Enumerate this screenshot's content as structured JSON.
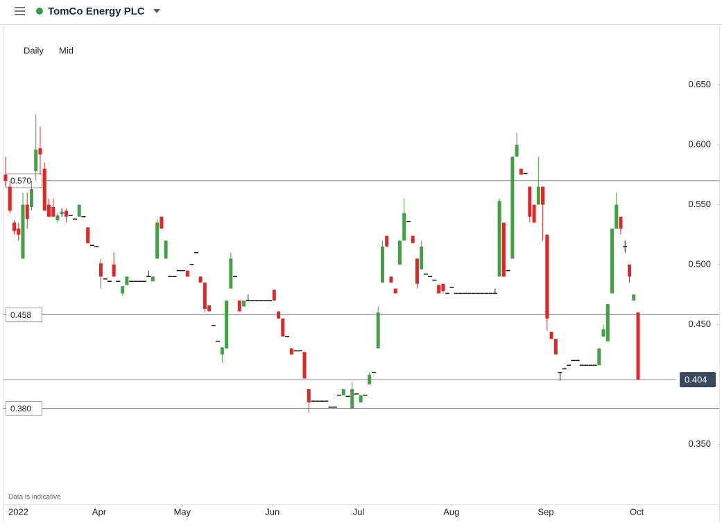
{
  "chart_data": {
    "type": "candlestick",
    "title": "TomCo Energy PLC",
    "interval": "Daily",
    "price_type": "Mid",
    "note": "Data is indicative",
    "up_color": "#43a047",
    "down_color": "#e02626",
    "flat_color": "#111111",
    "ylim": [
      0.3,
      0.7
    ],
    "yticks": [
      {
        "value": 0.35,
        "label": "0.350"
      },
      {
        "value": 0.45,
        "label": "0.450"
      },
      {
        "value": 0.5,
        "label": "0.500"
      },
      {
        "value": 0.55,
        "label": "0.550"
      },
      {
        "value": 0.6,
        "label": "0.600"
      },
      {
        "value": 0.65,
        "label": "0.650"
      }
    ],
    "xlim": [
      0,
      146
    ],
    "xticks": [
      {
        "value": 3.2,
        "label": "2022"
      },
      {
        "value": 21.6,
        "label": "Apr"
      },
      {
        "value": 40.8,
        "label": "May"
      },
      {
        "value": 61.6,
        "label": "Jun"
      },
      {
        "value": 81.5,
        "label": "Jul"
      },
      {
        "value": 102.9,
        "label": "Aug"
      },
      {
        "value": 124.7,
        "label": "Sep"
      },
      {
        "value": 145.7,
        "label": "Oct"
      }
    ],
    "levels": [
      {
        "value": 0.57,
        "label": "0.570"
      },
      {
        "value": 0.458,
        "label": "0.458"
      },
      {
        "value": 0.38,
        "label": "0.380"
      }
    ],
    "last_price": {
      "value": 0.404,
      "label": "0.404"
    },
    "ohlc": [
      [
        0.575,
        0.59,
        0.565,
        0.57
      ],
      [
        0.565,
        0.57,
        0.543,
        0.545
      ],
      [
        0.535,
        0.537,
        0.525,
        0.528
      ],
      [
        0.53,
        0.535,
        0.52,
        0.525
      ],
      [
        0.505,
        0.56,
        0.505,
        0.55
      ],
      [
        0.55,
        0.56,
        0.53,
        0.538
      ],
      [
        0.548,
        0.57,
        0.545,
        0.563
      ],
      [
        0.578,
        0.625,
        0.57,
        0.596
      ],
      [
        0.597,
        0.615,
        0.575,
        0.592
      ],
      [
        0.58,
        0.585,
        0.545,
        0.545
      ],
      [
        0.55,
        0.555,
        0.54,
        0.54
      ],
      [
        0.548,
        0.555,
        0.54,
        0.54
      ],
      [
        0.537,
        0.543,
        0.535,
        0.541
      ],
      [
        0.543,
        0.547,
        0.54,
        0.543
      ],
      [
        0.545,
        0.547,
        0.535,
        0.54
      ],
      [
        0.541,
        0.541,
        0.541,
        0.541
      ],
      [
        0.538,
        0.538,
        0.538,
        0.538
      ],
      [
        0.54,
        0.55,
        0.54,
        0.55
      ],
      [
        0.54,
        0.54,
        0.54,
        0.54
      ],
      [
        0.531,
        0.531,
        0.518,
        0.518
      ],
      [
        0.516,
        0.516,
        0.516,
        0.516
      ],
      [
        0.515,
        0.515,
        0.515,
        0.515
      ],
      [
        0.501,
        0.505,
        0.48,
        0.49
      ],
      [
        0.488,
        0.488,
        0.488,
        0.488
      ],
      [
        0.486,
        0.486,
        0.486,
        0.486
      ],
      [
        0.5,
        0.51,
        0.49,
        0.49
      ],
      [
        0.486,
        0.486,
        0.486,
        0.486
      ],
      [
        0.476,
        0.482,
        0.474,
        0.482
      ],
      [
        0.483,
        0.49,
        0.483,
        0.49
      ],
      [
        0.486,
        0.486,
        0.486,
        0.486
      ],
      [
        0.486,
        0.486,
        0.486,
        0.486
      ],
      [
        0.486,
        0.486,
        0.486,
        0.486
      ],
      [
        0.486,
        0.486,
        0.486,
        0.486
      ],
      [
        0.49,
        0.495,
        0.49,
        0.49
      ],
      [
        0.486,
        0.49,
        0.486,
        0.49
      ],
      [
        0.505,
        0.538,
        0.505,
        0.535
      ],
      [
        0.54,
        0.54,
        0.53,
        0.53
      ],
      [
        0.505,
        0.52,
        0.505,
        0.52
      ],
      [
        0.49,
        0.49,
        0.49,
        0.49
      ],
      [
        0.49,
        0.49,
        0.49,
        0.49
      ],
      [
        0.495,
        0.495,
        0.495,
        0.495
      ],
      [
        0.495,
        0.495,
        0.495,
        0.495
      ],
      [
        0.495,
        0.495,
        0.49,
        0.49
      ],
      [
        0.5,
        0.5,
        0.5,
        0.5
      ],
      [
        0.51,
        0.51,
        0.51,
        0.51
      ],
      [
        0.49,
        0.49,
        0.485,
        0.485
      ],
      [
        0.485,
        0.485,
        0.46,
        0.463
      ],
      [
        0.466,
        0.466,
        0.461,
        0.461
      ],
      [
        0.449,
        0.449,
        0.449,
        0.449
      ],
      [
        0.436,
        0.436,
        0.436,
        0.436
      ],
      [
        0.425,
        0.431,
        0.418,
        0.431
      ],
      [
        0.43,
        0.47,
        0.43,
        0.47
      ],
      [
        0.48,
        0.51,
        0.48,
        0.505
      ],
      [
        0.49,
        0.49,
        0.49,
        0.49
      ],
      [
        0.47,
        0.47,
        0.461,
        0.461
      ],
      [
        0.465,
        0.47,
        0.465,
        0.47
      ],
      [
        0.47,
        0.475,
        0.47,
        0.47
      ],
      [
        0.47,
        0.47,
        0.47,
        0.47
      ],
      [
        0.47,
        0.47,
        0.47,
        0.47
      ],
      [
        0.47,
        0.47,
        0.47,
        0.47
      ],
      [
        0.47,
        0.47,
        0.47,
        0.47
      ],
      [
        0.47,
        0.47,
        0.47,
        0.47
      ],
      [
        0.479,
        0.479,
        0.47,
        0.47
      ],
      [
        0.461,
        0.461,
        0.455,
        0.455
      ],
      [
        0.455,
        0.455,
        0.44,
        0.44
      ],
      [
        0.44,
        0.44,
        0.44,
        0.44
      ],
      [
        0.43,
        0.43,
        0.425,
        0.425
      ],
      [
        0.428,
        0.428,
        0.428,
        0.428
      ],
      [
        0.428,
        0.428,
        0.428,
        0.428
      ],
      [
        0.427,
        0.427,
        0.405,
        0.405
      ],
      [
        0.396,
        0.396,
        0.376,
        0.385
      ],
      [
        0.386,
        0.386,
        0.386,
        0.386
      ],
      [
        0.386,
        0.386,
        0.386,
        0.386
      ],
      [
        0.386,
        0.386,
        0.386,
        0.386
      ],
      [
        0.386,
        0.386,
        0.386,
        0.386
      ],
      [
        0.381,
        0.381,
        0.381,
        0.381
      ],
      [
        0.381,
        0.381,
        0.381,
        0.381
      ],
      [
        0.391,
        0.391,
        0.391,
        0.391
      ],
      [
        0.391,
        0.396,
        0.391,
        0.396
      ],
      [
        0.39,
        0.39,
        0.39,
        0.39
      ],
      [
        0.38,
        0.402,
        0.38,
        0.396
      ],
      [
        0.392,
        0.392,
        0.392,
        0.392
      ],
      [
        0.385,
        0.391,
        0.385,
        0.391
      ],
      [
        0.391,
        0.391,
        0.391,
        0.391
      ],
      [
        0.4,
        0.41,
        0.4,
        0.408
      ],
      [
        0.41,
        0.41,
        0.41,
        0.41
      ],
      [
        0.43,
        0.465,
        0.43,
        0.46
      ],
      [
        0.485,
        0.52,
        0.485,
        0.515
      ],
      [
        0.524,
        0.524,
        0.515,
        0.515
      ],
      [
        0.49,
        0.49,
        0.485,
        0.485
      ],
      [
        0.48,
        0.48,
        0.476,
        0.476
      ],
      [
        0.5,
        0.52,
        0.5,
        0.52
      ],
      [
        0.52,
        0.555,
        0.52,
        0.543
      ],
      [
        0.536,
        0.536,
        0.536,
        0.536
      ],
      [
        0.524,
        0.524,
        0.518,
        0.518
      ],
      [
        0.505,
        0.505,
        0.48,
        0.484
      ],
      [
        0.496,
        0.52,
        0.496,
        0.515
      ],
      [
        0.492,
        0.492,
        0.492,
        0.492
      ],
      [
        0.49,
        0.49,
        0.49,
        0.49
      ],
      [
        0.487,
        0.487,
        0.487,
        0.487
      ],
      [
        0.483,
        0.483,
        0.476,
        0.476
      ],
      [
        0.484,
        0.484,
        0.476,
        0.478
      ],
      [
        0.476,
        0.476,
        0.476,
        0.476
      ],
      [
        0.481,
        0.481,
        0.481,
        0.481
      ],
      [
        0.476,
        0.476,
        0.476,
        0.476
      ],
      [
        0.476,
        0.476,
        0.476,
        0.476
      ],
      [
        0.476,
        0.476,
        0.476,
        0.476
      ],
      [
        0.476,
        0.476,
        0.476,
        0.476
      ],
      [
        0.476,
        0.476,
        0.476,
        0.476
      ],
      [
        0.476,
        0.476,
        0.476,
        0.476
      ],
      [
        0.476,
        0.476,
        0.476,
        0.476
      ],
      [
        0.476,
        0.476,
        0.476,
        0.476
      ],
      [
        0.476,
        0.476,
        0.476,
        0.476
      ],
      [
        0.476,
        0.48,
        0.476,
        0.476
      ],
      [
        0.49,
        0.555,
        0.49,
        0.553
      ],
      [
        0.535,
        0.535,
        0.49,
        0.49
      ],
      [
        0.495,
        0.495,
        0.495,
        0.495
      ],
      [
        0.505,
        0.59,
        0.505,
        0.59
      ],
      [
        0.59,
        0.61,
        0.59,
        0.6
      ],
      [
        0.58,
        0.58,
        0.575,
        0.575
      ],
      [
        0.576,
        0.576,
        0.576,
        0.576
      ],
      [
        0.565,
        0.565,
        0.535,
        0.54
      ],
      [
        0.55,
        0.55,
        0.535,
        0.535
      ],
      [
        0.55,
        0.59,
        0.55,
        0.565
      ],
      [
        0.565,
        0.565,
        0.52,
        0.55
      ],
      [
        0.525,
        0.525,
        0.445,
        0.455
      ],
      [
        0.444,
        0.444,
        0.438,
        0.438
      ],
      [
        0.438,
        0.438,
        0.425,
        0.425
      ],
      [
        0.41,
        0.41,
        0.403,
        0.41
      ],
      [
        0.413,
        0.413,
        0.413,
        0.413
      ],
      [
        0.416,
        0.416,
        0.416,
        0.416
      ],
      [
        0.42,
        0.42,
        0.42,
        0.42
      ],
      [
        0.42,
        0.42,
        0.42,
        0.42
      ],
      [
        0.416,
        0.416,
        0.416,
        0.416
      ],
      [
        0.416,
        0.416,
        0.416,
        0.416
      ],
      [
        0.416,
        0.416,
        0.416,
        0.416
      ],
      [
        0.416,
        0.416,
        0.416,
        0.416
      ],
      [
        0.416,
        0.43,
        0.416,
        0.43
      ],
      [
        0.44,
        0.45,
        0.44,
        0.446
      ],
      [
        0.436,
        0.467,
        0.436,
        0.467
      ],
      [
        0.476,
        0.53,
        0.476,
        0.53
      ],
      [
        0.53,
        0.56,
        0.53,
        0.55
      ],
      [
        0.54,
        0.54,
        0.525,
        0.53
      ],
      [
        0.515,
        0.52,
        0.51,
        0.515
      ],
      [
        0.5,
        0.5,
        0.485,
        0.49
      ],
      [
        0.47,
        0.475,
        0.47,
        0.475
      ],
      [
        0.46,
        0.46,
        0.404,
        0.404
      ]
    ]
  }
}
